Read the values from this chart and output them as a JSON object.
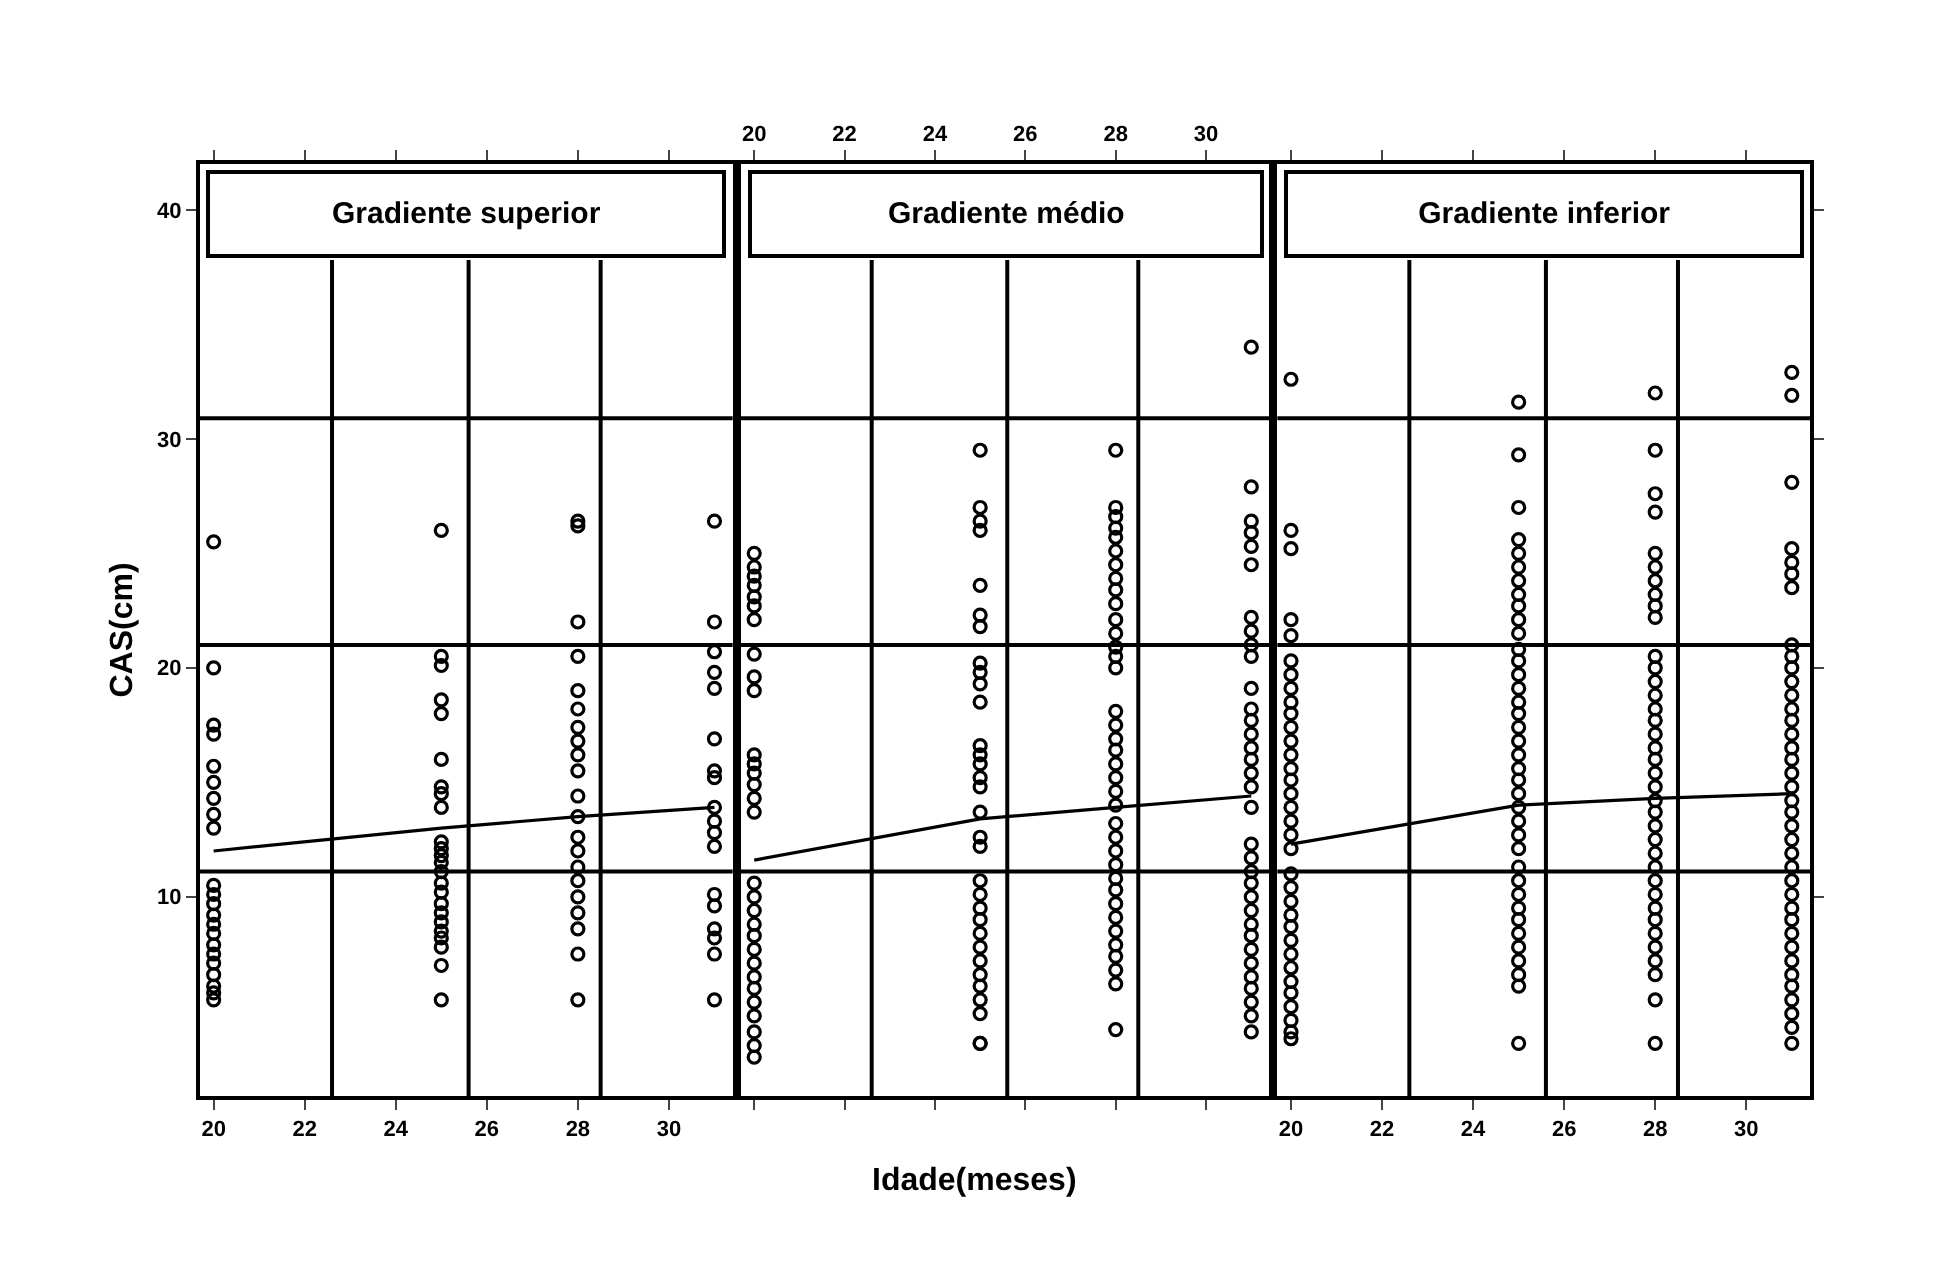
{
  "chart_data": [
    {
      "type": "scatter",
      "title": "Gradiente superior",
      "ylabel": "CAS(cm)",
      "xlim": [
        19.7,
        31.4
      ],
      "xticks": [
        20,
        22,
        24,
        26,
        28,
        30
      ],
      "ylim": [
        1.3,
        42
      ],
      "yticks": [
        10,
        20,
        30,
        40
      ],
      "grid": false,
      "ref_lines": [
        {
          "axis": "x",
          "value": 22.6,
          "color": "#000000"
        },
        {
          "axis": "x",
          "value": 25.6,
          "color": "#000000"
        },
        {
          "axis": "x",
          "value": 28.5,
          "color": "#000000"
        },
        {
          "axis": "y",
          "value": 11.1,
          "color": "#000000"
        },
        {
          "axis": "y",
          "value": 21.0,
          "color": "#000000"
        },
        {
          "axis": "y",
          "value": 30.9,
          "color": "#000000"
        }
      ],
      "series": [
        {
          "marker": "circle",
          "color": "#000000",
          "x": [
            20,
            20,
            20,
            20,
            20,
            20,
            20,
            20,
            20,
            20,
            20,
            20,
            20,
            20,
            20,
            20,
            20,
            20,
            20,
            20,
            20,
            20,
            25,
            25,
            25,
            25,
            25,
            25,
            25,
            25,
            25,
            25,
            25,
            25,
            25,
            25,
            25,
            25,
            25,
            25,
            25,
            25,
            25,
            25,
            25,
            25,
            28,
            28,
            28,
            28,
            28,
            28,
            28,
            28,
            28,
            28,
            28,
            28,
            28,
            28,
            28,
            28,
            28,
            28,
            28,
            28,
            28,
            31,
            31,
            31,
            31,
            31,
            31,
            31,
            31,
            31,
            31,
            31,
            31,
            31,
            31,
            31,
            31,
            31,
            31
          ],
          "values": [
            25.5,
            20.0,
            17.5,
            17.1,
            15.7,
            15.0,
            14.3,
            13.6,
            13.0,
            10.5,
            10.1,
            9.7,
            9.2,
            8.8,
            8.4,
            7.9,
            7.5,
            7.1,
            6.6,
            6.1,
            5.8,
            5.5,
            26.0,
            20.5,
            20.1,
            18.6,
            18.0,
            16.0,
            14.8,
            14.5,
            13.9,
            12.4,
            12.1,
            11.8,
            11.5,
            11.1,
            10.6,
            10.2,
            9.7,
            9.3,
            8.9,
            8.5,
            8.2,
            7.8,
            7.0,
            5.5,
            26.2,
            22.0,
            20.5,
            19.0,
            18.2,
            17.4,
            16.8,
            16.2,
            15.5,
            14.4,
            13.5,
            12.6,
            12.0,
            11.3,
            10.7,
            10.0,
            9.3,
            8.6,
            7.5,
            5.5,
            26.4,
            22.0,
            20.7,
            19.8,
            19.1,
            16.9,
            15.5,
            15.2,
            13.9,
            13.3,
            12.8,
            12.2,
            10.1,
            9.6,
            8.6,
            8.2,
            7.5,
            5.5,
            26.4
          ]
        },
        {
          "type": "line",
          "marker": "none",
          "color": "#000000",
          "x": [
            20,
            25,
            28,
            31
          ],
          "values": [
            12.0,
            13.0,
            13.5,
            13.9
          ]
        }
      ]
    },
    {
      "type": "scatter",
      "title": "Gradiente médio",
      "xlabel": "Idade(meses)",
      "xlim": [
        19.7,
        31.4
      ],
      "xticks": [
        20,
        22,
        24,
        26,
        28,
        30
      ],
      "ylim": [
        1.3,
        42
      ],
      "tick_labels": "x",
      "grid": false,
      "ref_lines": [
        {
          "axis": "x",
          "value": 22.6,
          "color": "#000000"
        },
        {
          "axis": "x",
          "value": 25.6,
          "color": "#000000"
        },
        {
          "axis": "x",
          "value": 28.5,
          "color": "#000000"
        },
        {
          "axis": "y",
          "value": 11.1,
          "color": "#000000"
        },
        {
          "axis": "y",
          "value": 21.0,
          "color": "#000000"
        },
        {
          "axis": "y",
          "value": 30.9,
          "color": "#000000"
        }
      ],
      "series": [
        {
          "marker": "circle",
          "color": "#000000",
          "x": [
            20,
            20,
            20,
            20,
            20,
            20,
            20,
            20,
            20,
            20,
            20,
            20,
            20,
            20,
            20,
            20,
            20,
            20,
            20,
            20,
            20,
            20,
            20,
            20,
            20,
            20,
            20,
            20,
            20,
            20,
            25,
            25,
            25,
            25,
            25,
            25,
            25,
            25,
            25,
            25,
            25,
            25,
            25,
            25,
            25,
            25,
            25,
            25,
            25,
            25,
            25,
            25,
            25,
            25,
            25,
            25,
            25,
            25,
            25,
            25,
            25,
            25,
            28,
            28,
            28,
            28,
            28,
            28,
            28,
            28,
            28,
            28,
            28,
            28,
            28,
            28,
            28,
            28,
            28,
            28,
            28,
            28,
            28,
            28,
            28,
            28,
            28,
            28,
            28,
            28,
            28,
            28,
            28,
            28,
            28,
            28,
            28,
            28,
            28,
            31,
            31,
            31,
            31,
            31,
            31,
            31,
            31,
            31,
            31,
            31,
            31,
            31,
            31,
            31,
            31,
            31,
            31,
            31,
            31,
            31,
            31,
            31,
            31,
            31,
            31,
            31,
            31,
            31,
            31,
            31,
            31,
            31,
            31
          ],
          "values": [
            25.0,
            24.4,
            24.0,
            23.6,
            23.1,
            22.7,
            22.1,
            20.6,
            19.6,
            19.0,
            16.2,
            15.8,
            15.4,
            14.9,
            14.3,
            13.7,
            10.6,
            10.0,
            9.4,
            8.8,
            8.3,
            7.7,
            7.1,
            6.5,
            6.0,
            5.4,
            4.8,
            4.1,
            3.5,
            3.0,
            29.5,
            27.0,
            26.4,
            26.0,
            23.6,
            22.3,
            21.8,
            20.2,
            19.8,
            19.3,
            18.5,
            16.6,
            16.2,
            15.8,
            15.2,
            14.8,
            13.7,
            12.6,
            12.2,
            10.7,
            10.1,
            9.5,
            9.0,
            8.4,
            7.8,
            7.2,
            6.6,
            6.1,
            5.5,
            4.9,
            3.6,
            3.6,
            29.5,
            27.0,
            26.6,
            26.1,
            25.7,
            25.1,
            24.5,
            23.9,
            23.4,
            22.8,
            22.1,
            21.5,
            20.9,
            20.5,
            20.0,
            18.1,
            17.5,
            16.9,
            16.4,
            15.8,
            15.2,
            14.6,
            14.0,
            13.2,
            12.6,
            12.0,
            11.4,
            10.8,
            10.3,
            9.7,
            9.1,
            8.5,
            7.9,
            7.4,
            6.8,
            6.2,
            4.2,
            34.0,
            27.9,
            26.4,
            25.9,
            25.3,
            24.5,
            22.2,
            21.6,
            20.5,
            19.1,
            18.2,
            17.7,
            17.1,
            16.5,
            16.0,
            15.4,
            14.8,
            13.9,
            12.3,
            11.7,
            11.1,
            10.6,
            10.0,
            9.4,
            8.8,
            8.3,
            7.7,
            7.1,
            6.5,
            6.0,
            5.4,
            4.8,
            4.1,
            21.0
          ]
        },
        {
          "type": "line",
          "marker": "none",
          "color": "#000000",
          "x": [
            20,
            25,
            28,
            31
          ],
          "values": [
            11.6,
            13.4,
            13.9,
            14.4
          ]
        }
      ]
    },
    {
      "type": "scatter",
      "title": "Gradiente inferior",
      "xlim": [
        19.7,
        31.4
      ],
      "xticks": [
        20,
        22,
        24,
        26,
        28,
        30
      ],
      "ylim": [
        1.3,
        42
      ],
      "tick_labels": "x",
      "grid": false,
      "ref_lines": [
        {
          "axis": "x",
          "value": 22.6,
          "color": "#000000"
        },
        {
          "axis": "x",
          "value": 25.6,
          "color": "#000000"
        },
        {
          "axis": "x",
          "value": 28.5,
          "color": "#000000"
        },
        {
          "axis": "y",
          "value": 11.1,
          "color": "#000000"
        },
        {
          "axis": "y",
          "value": 21.0,
          "color": "#000000"
        },
        {
          "axis": "y",
          "value": 30.9,
          "color": "#000000"
        }
      ],
      "series": [
        {
          "marker": "circle",
          "color": "#000000",
          "x": [
            20,
            20,
            20,
            20,
            20,
            20,
            20,
            20,
            20,
            20,
            20,
            20,
            20,
            20,
            20,
            20,
            20,
            20,
            20,
            20,
            20,
            20,
            20,
            20,
            20,
            20,
            20,
            20,
            20,
            20,
            20,
            20,
            20,
            20,
            25,
            25,
            25,
            25,
            25,
            25,
            25,
            25,
            25,
            25,
            25,
            25,
            25,
            25,
            25,
            25,
            25,
            25,
            25,
            25,
            25,
            25,
            25,
            25,
            25,
            25,
            25,
            25,
            25,
            25,
            25,
            25,
            25,
            25,
            25,
            25,
            25,
            25,
            28,
            28,
            28,
            28,
            28,
            28,
            28,
            28,
            28,
            28,
            28,
            28,
            28,
            28,
            28,
            28,
            28,
            28,
            28,
            28,
            28,
            28,
            28,
            28,
            28,
            28,
            28,
            28,
            28,
            28,
            28,
            28,
            28,
            28,
            28,
            28,
            28,
            31,
            31,
            31,
            31,
            31,
            31,
            31,
            31,
            31,
            31,
            31,
            31,
            31,
            31,
            31,
            31,
            31,
            31,
            31,
            31,
            31,
            31,
            31,
            31,
            31,
            31,
            31,
            31,
            31,
            31,
            31,
            31,
            31,
            31,
            31,
            31,
            31,
            31
          ],
          "values": [
            32.6,
            26.0,
            25.2,
            22.1,
            21.4,
            20.3,
            19.7,
            19.1,
            18.5,
            18.0,
            17.4,
            16.8,
            16.2,
            15.6,
            15.1,
            14.5,
            13.9,
            13.3,
            12.7,
            12.1,
            11.0,
            10.4,
            9.8,
            9.2,
            8.7,
            8.1,
            7.5,
            6.9,
            6.3,
            5.8,
            5.2,
            4.6,
            4.1,
            3.8,
            31.6,
            29.3,
            27.0,
            25.6,
            25.0,
            24.4,
            23.8,
            23.2,
            22.7,
            22.1,
            21.5,
            20.8,
            20.3,
            19.7,
            19.1,
            18.5,
            18.0,
            17.4,
            16.8,
            16.2,
            15.6,
            15.1,
            14.5,
            13.9,
            13.3,
            12.7,
            12.1,
            11.3,
            10.7,
            10.1,
            9.5,
            9.0,
            8.4,
            7.8,
            7.2,
            6.6,
            6.1,
            3.6,
            32.0,
            29.5,
            27.6,
            26.8,
            25.0,
            24.4,
            23.8,
            23.2,
            22.7,
            22.2,
            20.5,
            20.0,
            19.4,
            18.8,
            18.2,
            17.7,
            17.1,
            16.5,
            16.0,
            15.4,
            14.8,
            14.2,
            13.7,
            13.1,
            12.5,
            11.9,
            11.3,
            10.7,
            10.1,
            9.5,
            9.0,
            8.4,
            7.8,
            7.2,
            6.6,
            5.5,
            3.6,
            32.9,
            31.9,
            28.1,
            25.2,
            24.6,
            24.1,
            23.5,
            21.0,
            20.5,
            20.0,
            19.4,
            18.8,
            18.2,
            17.7,
            17.1,
            16.5,
            16.0,
            15.4,
            14.8,
            14.2,
            13.7,
            13.1,
            12.5,
            11.9,
            11.3,
            10.7,
            10.1,
            9.5,
            9.0,
            8.4,
            7.8,
            7.2,
            6.6,
            6.1,
            5.5,
            4.9,
            4.3,
            3.6
          ]
        },
        {
          "type": "line",
          "marker": "none",
          "color": "#000000",
          "x": [
            20,
            25,
            28,
            31
          ],
          "values": [
            12.3,
            14.0,
            14.3,
            14.5
          ]
        }
      ]
    }
  ]
}
